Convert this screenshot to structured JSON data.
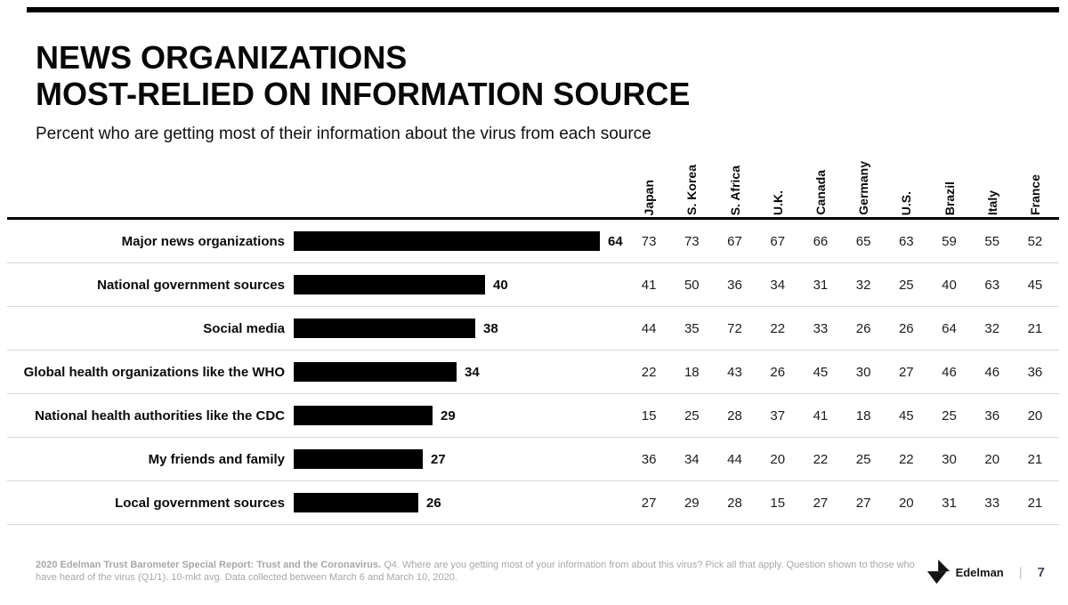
{
  "slide": {
    "title_line1": "NEWS ORGANIZATIONS",
    "title_line2": "MOST-RELIED ON INFORMATION SOURCE",
    "subtitle": "Percent who are getting most of their information about the virus from each source",
    "brand": "Edelman",
    "page_number": "7"
  },
  "footer": {
    "bold": "2020 Edelman Trust Barometer Special Report: Trust and the Coronavirus.",
    "rest": " Q4. Where are you getting most of your information from about this virus? Pick all that apply. Question shown to those who have heard of the virus (Q1/1). 10-mkt avg. Data collected between March 6 and March 10, 2020."
  },
  "colors": {
    "bar": "#000000",
    "row_separator": "#d8d8d8",
    "footer_text": "#a7a7a7"
  },
  "chart_data": {
    "type": "bar",
    "title": "NEWS ORGANIZATIONS MOST-RELIED ON INFORMATION SOURCE",
    "subtitle": "Percent who are getting most of their information about the virus from each source",
    "unit": "percent",
    "xlim": [
      0,
      100
    ],
    "bar_note": "bar shows 10-mkt avg",
    "columns": [
      "Japan",
      "S. Korea",
      "S. Africa",
      "U.K.",
      "Canada",
      "Germany",
      "U.S.",
      "Brazil",
      "Italy",
      "France"
    ],
    "rows": [
      {
        "label": "Major news organizations",
        "bar_value": 64,
        "values": [
          73,
          73,
          67,
          67,
          66,
          65,
          63,
          59,
          55,
          52
        ]
      },
      {
        "label": "National government sources",
        "bar_value": 40,
        "values": [
          41,
          50,
          36,
          34,
          31,
          32,
          25,
          40,
          63,
          45
        ]
      },
      {
        "label": "Social media",
        "bar_value": 38,
        "values": [
          44,
          35,
          72,
          22,
          33,
          26,
          26,
          64,
          32,
          21
        ]
      },
      {
        "label": "Global health organizations like the WHO",
        "bar_value": 34,
        "values": [
          22,
          18,
          43,
          26,
          45,
          30,
          27,
          46,
          46,
          36
        ]
      },
      {
        "label": "National health authorities like the CDC",
        "bar_value": 29,
        "values": [
          15,
          25,
          28,
          37,
          41,
          18,
          45,
          25,
          36,
          20
        ]
      },
      {
        "label": "My friends and family",
        "bar_value": 27,
        "values": [
          36,
          34,
          44,
          20,
          22,
          25,
          22,
          30,
          20,
          21
        ]
      },
      {
        "label": "Local government sources",
        "bar_value": 26,
        "values": [
          27,
          29,
          28,
          15,
          27,
          27,
          20,
          31,
          33,
          21
        ]
      }
    ]
  }
}
